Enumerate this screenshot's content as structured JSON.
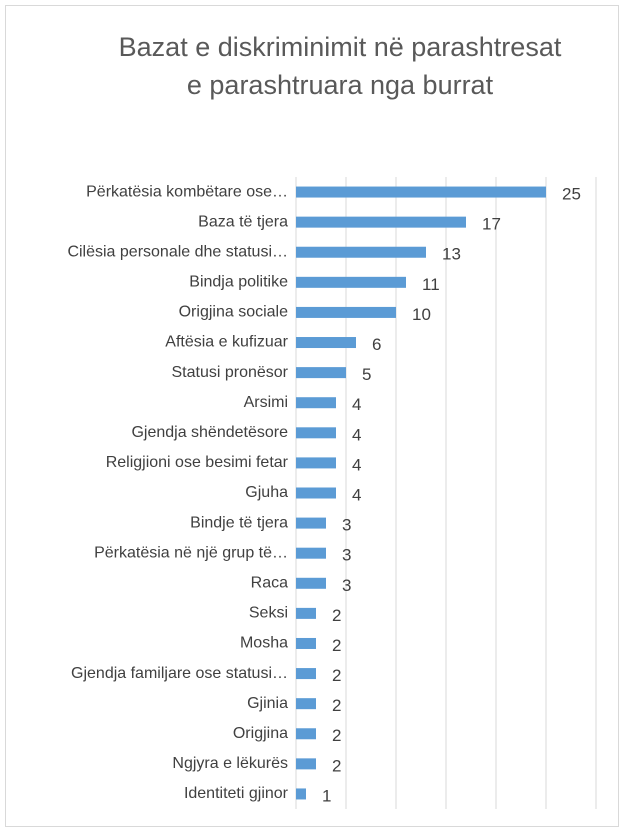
{
  "chart_data": {
    "type": "bar",
    "orientation": "horizontal",
    "title": "Bazat e diskriminimit në parashtresat e parashtruara nga burrat",
    "categories": [
      "Përkatësia kombëtare ose…",
      "Baza të tjera",
      "Cilësia personale dhe statusi…",
      "Bindja politike",
      "Origjina sociale",
      "Aftësia e kufizuar",
      "Statusi pronësor",
      "Arsimi",
      "Gjendja shëndetësore",
      "Religjioni ose besimi fetar",
      "Gjuha",
      "Bindje të tjera",
      "Përkatësia në një grup të…",
      "Raca",
      "Seksi",
      "Mosha",
      "Gjendja familjare ose statusi…",
      "Gjinia",
      "Origjina",
      "Ngjyra e lëkurës",
      "Identiteti gjinor"
    ],
    "values": [
      25,
      17,
      13,
      11,
      10,
      6,
      5,
      4,
      4,
      4,
      4,
      3,
      3,
      3,
      2,
      2,
      2,
      2,
      2,
      2,
      1
    ],
    "color": "#5b9bd5",
    "xlim": [
      0,
      30
    ],
    "xticks": [
      0,
      5,
      10,
      15,
      20,
      25,
      30
    ],
    "grid": true
  }
}
